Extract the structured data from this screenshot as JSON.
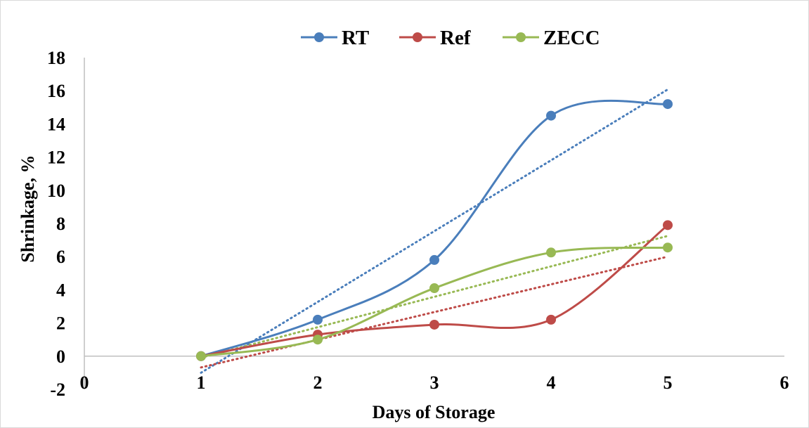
{
  "chart_data": {
    "type": "line",
    "title": "",
    "xlabel": "Days of Storage",
    "ylabel": "Shrinkage, %",
    "xlim": [
      0,
      6
    ],
    "ylim": [
      -2,
      18
    ],
    "x_ticks": [
      0,
      1,
      2,
      3,
      4,
      5,
      6
    ],
    "y_ticks": [
      -2,
      0,
      2,
      4,
      6,
      8,
      10,
      12,
      14,
      16,
      18
    ],
    "grid": false,
    "legend": "top",
    "trendlines": "linear, dotted",
    "x": [
      1,
      2,
      3,
      4,
      5
    ],
    "series": [
      {
        "name": "RT",
        "color": "#4a7ebb",
        "values": [
          0,
          2.2,
          5.8,
          14.5,
          15.2
        ]
      },
      {
        "name": "Ref",
        "color": "#be4b48",
        "values": [
          0,
          1.3,
          1.9,
          2.2,
          7.9
        ]
      },
      {
        "name": "ZECC",
        "color": "#98b954",
        "values": [
          0,
          1.0,
          4.1,
          6.25,
          6.55
        ]
      }
    ]
  }
}
